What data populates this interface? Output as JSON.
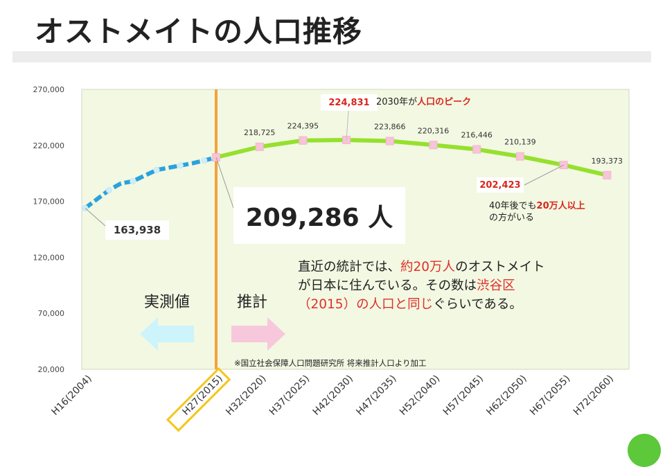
{
  "title": "オストメイトの人口推移",
  "chart_data": {
    "type": "line",
    "categories": [
      "H16(2004)",
      "H27(2015)",
      "H32(2020)",
      "H37(2025)",
      "H42(2030)",
      "H47(2035)",
      "H52(2040)",
      "H57(2045)",
      "H62(2050)",
      "H67(2055)",
      "H72(2060)"
    ],
    "actual_series": {
      "name": "実測値",
      "x": [
        2004,
        2005,
        2006,
        2007,
        2008,
        2009,
        2010,
        2011,
        2012,
        2013,
        2014,
        2015
      ],
      "values": [
        163938,
        172000,
        180000,
        186000,
        188000,
        193000,
        198000,
        200000,
        202000,
        204000,
        206500,
        209286
      ]
    },
    "forecast_series": {
      "name": "推計",
      "x": [
        2015,
        2020,
        2025,
        2030,
        2035,
        2040,
        2045,
        2050,
        2055,
        2060
      ],
      "values": [
        209286,
        218725,
        224395,
        224831,
        223866,
        220316,
        216446,
        210139,
        202423,
        193373
      ]
    },
    "data_labels": [
      "218,725",
      "224,395",
      "224,831",
      "223,866",
      "220,316",
      "216,446",
      "210,139",
      "202,423",
      "193,373"
    ],
    "yticks": [
      "270,000",
      "220,000",
      "170,000",
      "120,000",
      "70,000",
      "20,000"
    ],
    "ylim": [
      20000,
      270000
    ],
    "highlight_category": "H27(2015)",
    "colors": {
      "actual": "#2aa2dc",
      "forecast": "#96e02e",
      "marker": "#f7c4d8",
      "divider": "#f4a23a",
      "plot_bg": "#f2f8e2"
    }
  },
  "callouts": {
    "start_value": "163,938",
    "current_value": "209,286 人",
    "peak_value": "224,831",
    "peak_note_prefix": "2030年が",
    "peak_note_highlight": "人口のピーク",
    "later_value": "202,423",
    "later_note_prefix": "40年後でも",
    "later_note_highlight": "20万人以上",
    "later_note_suffix": "の方がいる"
  },
  "labels": {
    "actual": "実測値",
    "forecast": "推計"
  },
  "body_text": {
    "p1": "直近の統計では、",
    "p1_red": "約20万人",
    "p2": "のオストメイト",
    "p3": "が日本に住んでいる。その数は",
    "p3_red": "渋谷区",
    "p4_red": "（2015）の人口と同じ",
    "p5": "ぐらいである。"
  },
  "source": "※国立社会保障人口問題研究所 将来推計人口より加工"
}
